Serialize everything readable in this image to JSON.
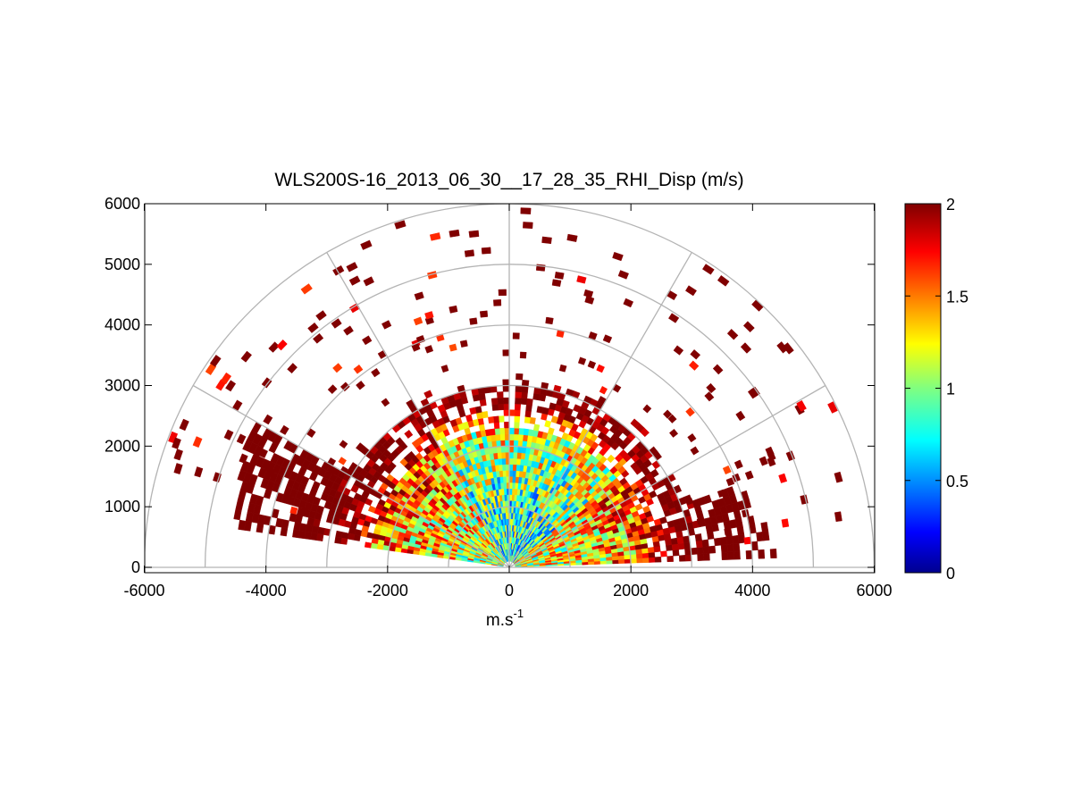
{
  "chart_data": {
    "type": "heatmap",
    "subtype": "polar-rhi-sector",
    "title": "WLS200S-16_2013_06_30__17_28_35_RHI_Disp (m/s)",
    "xlabel_base": "m.s",
    "xlabel_sup": "-1",
    "xlim": [
      -6000,
      6000
    ],
    "ylim": [
      0,
      6000
    ],
    "x_ticks": [
      -6000,
      -4000,
      -2000,
      0,
      2000,
      4000,
      6000
    ],
    "y_ticks": [
      0,
      1000,
      2000,
      3000,
      4000,
      5000,
      6000
    ],
    "range_rings": [
      1000,
      2000,
      3000,
      4000,
      5000,
      6000
    ],
    "radial_spokes_deg": [
      0,
      30,
      60,
      90,
      120,
      150,
      180
    ],
    "colorbar": {
      "colormap": "jet",
      "min": 0,
      "max": 2,
      "ticks": [
        0,
        0.5,
        1,
        1.5,
        2
      ]
    },
    "value_summary": {
      "elevation_range_deg": [
        0,
        170
      ],
      "dense_core_max_range_m": 3100,
      "scattered_max_range_m": 5900,
      "left_low_elevation_beams_max_range_m": 4800,
      "right_low_elevation_block_max_range_m": 4400,
      "typical_near_range_value": 0.8,
      "typical_far_range_value": 2.0
    }
  }
}
